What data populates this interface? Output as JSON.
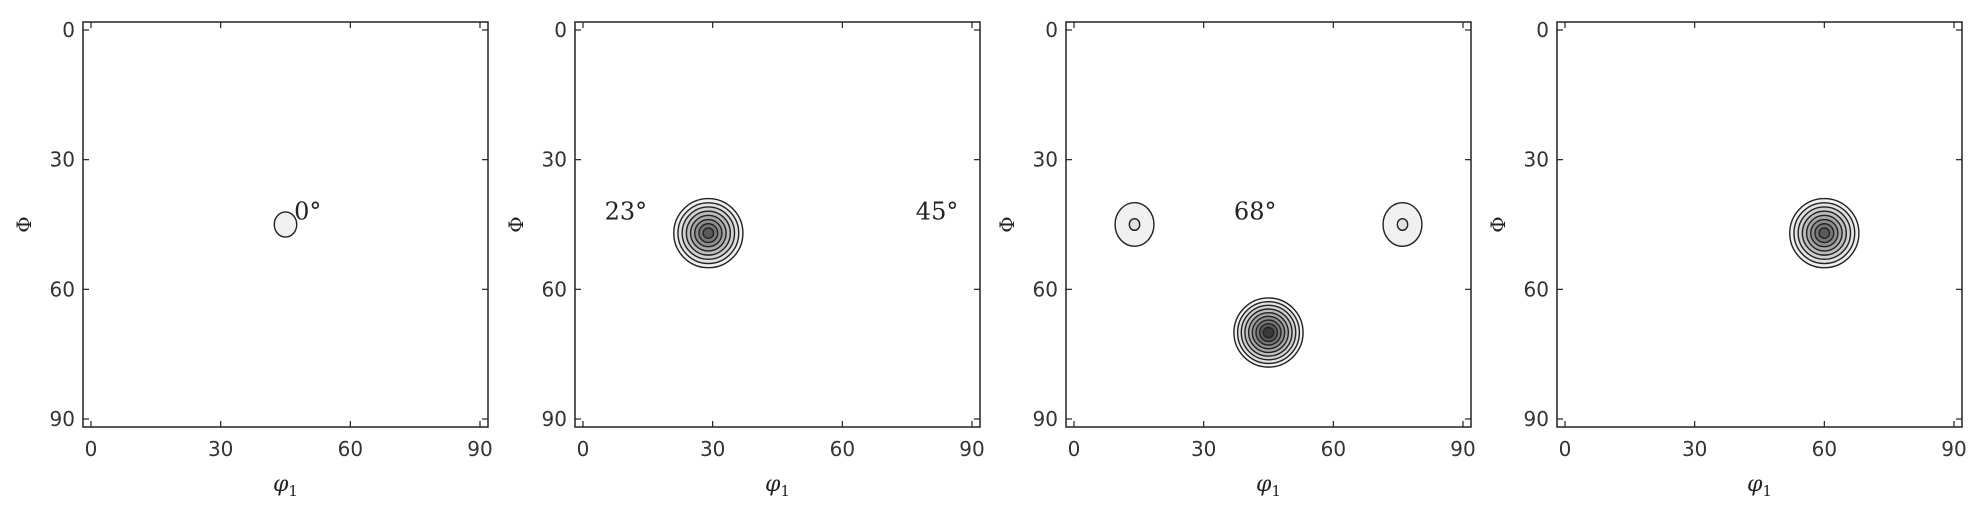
{
  "chart_data": [
    {
      "type": "contour",
      "xlabel": "φ",
      "xlabel_sub": "1",
      "ylabel": "Φ",
      "xlim": [
        0,
        90
      ],
      "ylim": [
        0,
        90
      ],
      "y_inverted": true,
      "xticks": [
        "0",
        "30",
        "60",
        "90"
      ],
      "yticks": [
        "0",
        "30",
        "60",
        "90"
      ],
      "peaks": [
        {
          "x": 45,
          "y": 45,
          "levels": 1
        }
      ],
      "annotations": [
        {
          "text": "0°",
          "x": 47,
          "y": 42
        }
      ]
    },
    {
      "type": "contour",
      "xlabel": "φ",
      "xlabel_sub": "1",
      "ylabel": "Φ",
      "xlim": [
        0,
        90
      ],
      "ylim": [
        0,
        90
      ],
      "y_inverted": true,
      "xticks": [
        "0",
        "30",
        "60",
        "90"
      ],
      "yticks": [
        "0",
        "30",
        "60",
        "90"
      ],
      "peaks": [
        {
          "x": 29,
          "y": 47,
          "levels": 8
        }
      ],
      "annotations": [
        {
          "text": "23°",
          "x": 5,
          "y": 42
        },
        {
          "text": "45°",
          "x": 77,
          "y": 42
        }
      ]
    },
    {
      "type": "contour",
      "xlabel": "φ",
      "xlabel_sub": "1",
      "ylabel": "Φ",
      "xlim": [
        0,
        90
      ],
      "ylim": [
        0,
        90
      ],
      "y_inverted": true,
      "xticks": [
        "0",
        "30",
        "60",
        "90"
      ],
      "yticks": [
        "0",
        "30",
        "60",
        "90"
      ],
      "peaks": [
        {
          "x": 45,
          "y": 70,
          "levels": 9
        },
        {
          "x": 14,
          "y": 45,
          "levels": 2
        },
        {
          "x": 76,
          "y": 45,
          "levels": 2
        }
      ],
      "annotations": [
        {
          "text": "68°",
          "x": 37,
          "y": 42
        }
      ]
    },
    {
      "type": "contour",
      "xlabel": "φ",
      "xlabel_sub": "1",
      "ylabel": "Φ",
      "xlim": [
        0,
        90
      ],
      "ylim": [
        0,
        90
      ],
      "y_inverted": true,
      "xticks": [
        "0",
        "30",
        "60",
        "90"
      ],
      "yticks": [
        "0",
        "30",
        "60",
        "90"
      ],
      "peaks": [
        {
          "x": 60,
          "y": 47,
          "levels": 8
        }
      ],
      "annotations": []
    }
  ],
  "colors": {
    "frame": "#222222",
    "levels": [
      "#f0f0f0",
      "#e2e2e2",
      "#d0d0d0",
      "#bcbcbc",
      "#a6a6a6",
      "#8e8e8e",
      "#767676",
      "#5a5a5a",
      "#3a3a3a"
    ]
  }
}
